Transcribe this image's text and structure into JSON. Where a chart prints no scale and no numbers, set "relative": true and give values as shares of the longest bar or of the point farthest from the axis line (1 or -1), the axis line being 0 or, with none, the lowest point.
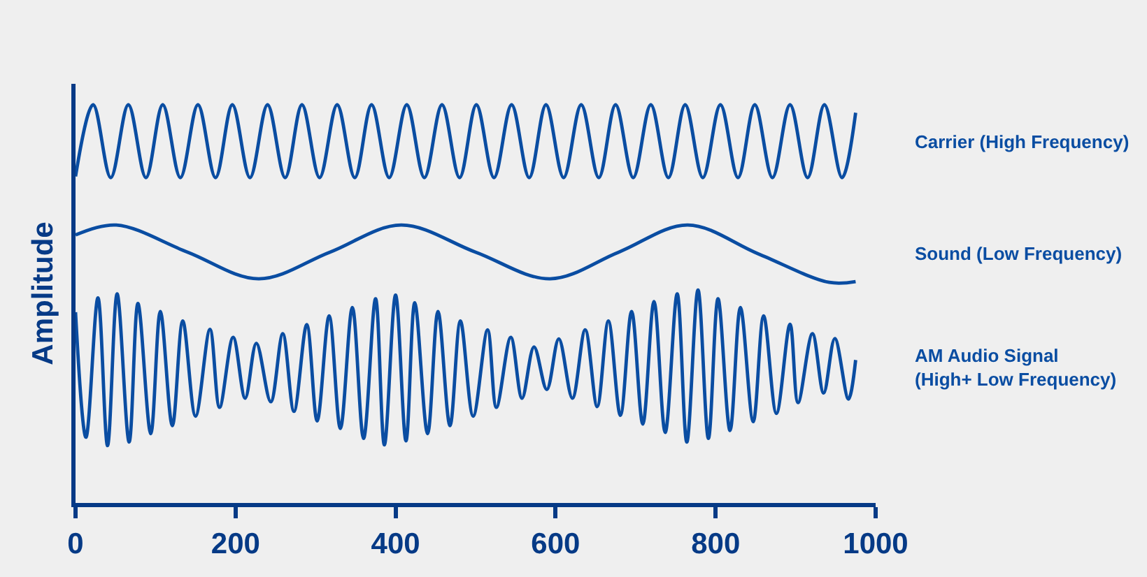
{
  "chart_data": {
    "type": "line",
    "relative": true,
    "ylabel": "Amplitude",
    "xlim": [
      0,
      1000
    ],
    "xticks": [
      0,
      200,
      400,
      600,
      800,
      1000
    ],
    "series": [
      {
        "name": "Carrier (High Frequency)",
        "color": "#0a4da2",
        "x": [
          0,
          22,
          44,
          66,
          88,
          109,
          131,
          153,
          175,
          196,
          218,
          240,
          262,
          283,
          305,
          327,
          349,
          370,
          392,
          414,
          436,
          458,
          480,
          501,
          523,
          545,
          567,
          588,
          610,
          632,
          654,
          675,
          697,
          719,
          741,
          762,
          784,
          806,
          828,
          849,
          871,
          893,
          915,
          936,
          958,
          975
        ],
        "values": [
          0.82,
          1.0,
          0.817,
          1.0,
          0.817,
          1.0,
          0.817,
          1.0,
          0.817,
          1.0,
          0.817,
          1.0,
          0.817,
          1.0,
          0.817,
          1.0,
          0.817,
          1.0,
          0.817,
          1.0,
          0.817,
          1.0,
          0.817,
          1.0,
          0.817,
          1.0,
          0.817,
          1.0,
          0.817,
          1.0,
          0.817,
          1.0,
          0.817,
          1.0,
          0.817,
          1.0,
          0.817,
          1.0,
          0.817,
          1.0,
          0.817,
          1.0,
          0.817,
          1.0,
          0.817,
          0.98
        ]
      },
      {
        "name": "Sound (Low Frequency)",
        "color": "#0a4da2",
        "x": [
          0,
          51,
          140,
          229,
          318,
          407,
          500,
          593,
          679,
          765,
          853,
          942,
          975
        ],
        "values": [
          0.673,
          0.698,
          0.63,
          0.563,
          0.63,
          0.698,
          0.63,
          0.563,
          0.63,
          0.698,
          0.626,
          0.554,
          0.556
        ]
      },
      {
        "name": "AM Audio Signal\n(High+ Low Frequency)",
        "color": "#0a4da2",
        "x": [
          0,
          13,
          28,
          40,
          52,
          67,
          78,
          94,
          106,
          121,
          134,
          150,
          168,
          180,
          197,
          212,
          226,
          244,
          259,
          273,
          289,
          302,
          317,
          331,
          346,
          360,
          375,
          386,
          400,
          413,
          424,
          440,
          453,
          468,
          481,
          497,
          515,
          526,
          544,
          558,
          573,
          589,
          604,
          621,
          637,
          652,
          666,
          681,
          695,
          709,
          723,
          737,
          752,
          764,
          778,
          791,
          803,
          818,
          831,
          847,
          860,
          876,
          893,
          903,
          921,
          935,
          949,
          966,
          975
        ],
        "values": [
          0.479,
          0.165,
          0.515,
          0.144,
          0.525,
          0.153,
          0.501,
          0.174,
          0.481,
          0.194,
          0.457,
          0.218,
          0.436,
          0.24,
          0.416,
          0.263,
          0.401,
          0.254,
          0.425,
          0.23,
          0.448,
          0.206,
          0.47,
          0.187,
          0.491,
          0.162,
          0.513,
          0.146,
          0.522,
          0.156,
          0.503,
          0.174,
          0.481,
          0.194,
          0.457,
          0.218,
          0.435,
          0.24,
          0.416,
          0.263,
          0.392,
          0.285,
          0.412,
          0.263,
          0.435,
          0.242,
          0.457,
          0.22,
          0.481,
          0.198,
          0.506,
          0.177,
          0.525,
          0.153,
          0.535,
          0.162,
          0.513,
          0.182,
          0.491,
          0.204,
          0.47,
          0.225,
          0.449,
          0.252,
          0.425,
          0.276,
          0.413,
          0.261,
          0.359
        ]
      }
    ]
  }
}
